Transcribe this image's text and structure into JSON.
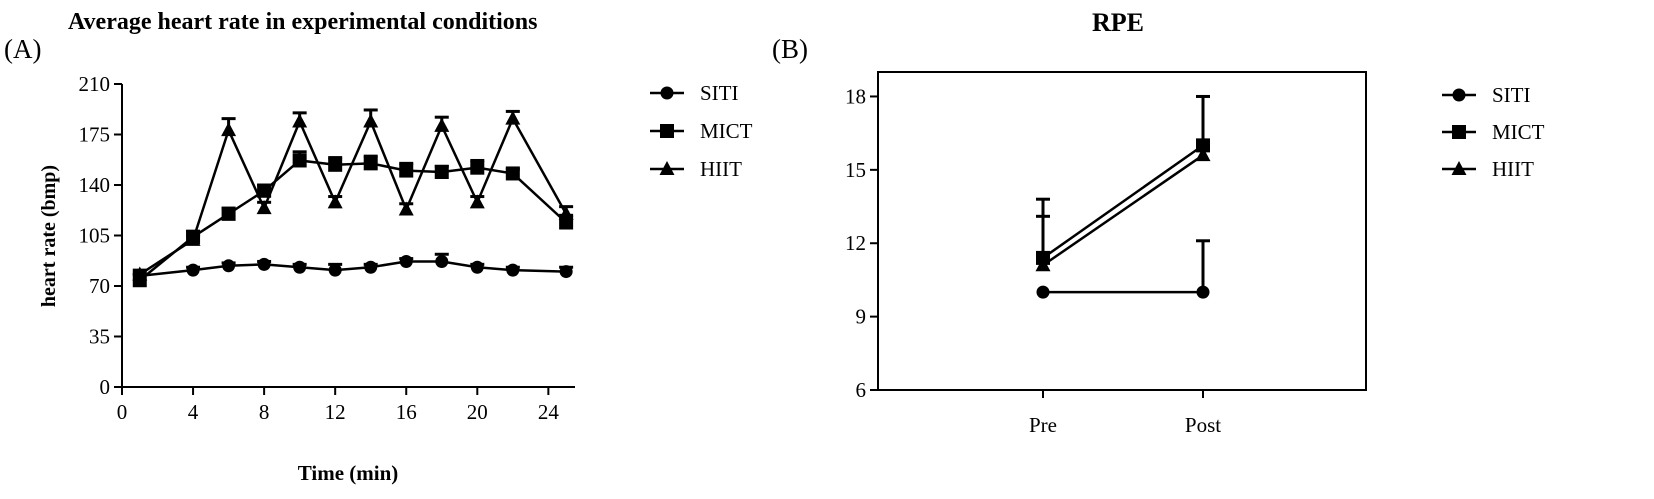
{
  "chart_data": [
    {
      "panel_label": "(A)",
      "type": "line",
      "title": "Average heart rate in experimental conditions",
      "xlabel": "Time (min)",
      "ylabel": "heart rate (bmp)",
      "xlim": [
        0,
        25.5
      ],
      "ylim": [
        0,
        210
      ],
      "xticks": [
        "0",
        "4",
        "8",
        "12",
        "16",
        "20",
        "24"
      ],
      "yticks": [
        "0",
        "35",
        "70",
        "105",
        "140",
        "175",
        "210"
      ],
      "grid": false,
      "legend_position": "right",
      "series": [
        {
          "name": "SITI",
          "marker": "circle",
          "x": [
            1,
            4,
            6,
            8,
            10,
            12,
            14,
            16,
            18,
            20,
            22,
            25
          ],
          "y": [
            77,
            81,
            84,
            85,
            83,
            81,
            83,
            87,
            87,
            83,
            81,
            80
          ],
          "err": [
            2,
            2,
            2,
            2,
            2,
            4,
            2,
            2,
            5,
            2,
            2,
            3
          ]
        },
        {
          "name": "MICT",
          "marker": "square",
          "x": [
            1,
            4,
            6,
            8,
            10,
            12,
            14,
            16,
            18,
            20,
            22,
            25
          ],
          "y": [
            74,
            104,
            120,
            136,
            157,
            154,
            155,
            150,
            149,
            152,
            148,
            114
          ],
          "err": [
            4,
            4,
            4,
            4,
            6,
            5,
            5,
            5,
            4,
            5,
            3,
            5
          ]
        },
        {
          "name": "HIIT",
          "marker": "triangle",
          "x": [
            1,
            4,
            6,
            8,
            10,
            12,
            14,
            16,
            18,
            20,
            22,
            25
          ],
          "y": [
            78,
            102,
            178,
            124,
            184,
            128,
            184,
            123,
            181,
            128,
            186,
            120
          ],
          "err": [
            3,
            3,
            8,
            4,
            6,
            4,
            8,
            4,
            6,
            4,
            5,
            5
          ]
        }
      ]
    },
    {
      "panel_label": "(B)",
      "type": "line",
      "title": "RPE",
      "xlabel": "",
      "ylabel": "",
      "categories": [
        "Pre",
        "Post"
      ],
      "ylim": [
        6,
        19
      ],
      "yticks": [
        "6",
        "9",
        "12",
        "15",
        "18"
      ],
      "grid": false,
      "legend_position": "right",
      "series": [
        {
          "name": "SITI",
          "marker": "circle",
          "y": [
            10,
            10
          ],
          "err": [
            0,
            2.1
          ]
        },
        {
          "name": "MICT",
          "marker": "square",
          "y": [
            11.4,
            16
          ],
          "err": [
            2.4,
            2
          ]
        },
        {
          "name": "HIIT",
          "marker": "triangle",
          "y": [
            11.1,
            15.6
          ],
          "err": [
            2,
            0
          ]
        }
      ]
    }
  ]
}
